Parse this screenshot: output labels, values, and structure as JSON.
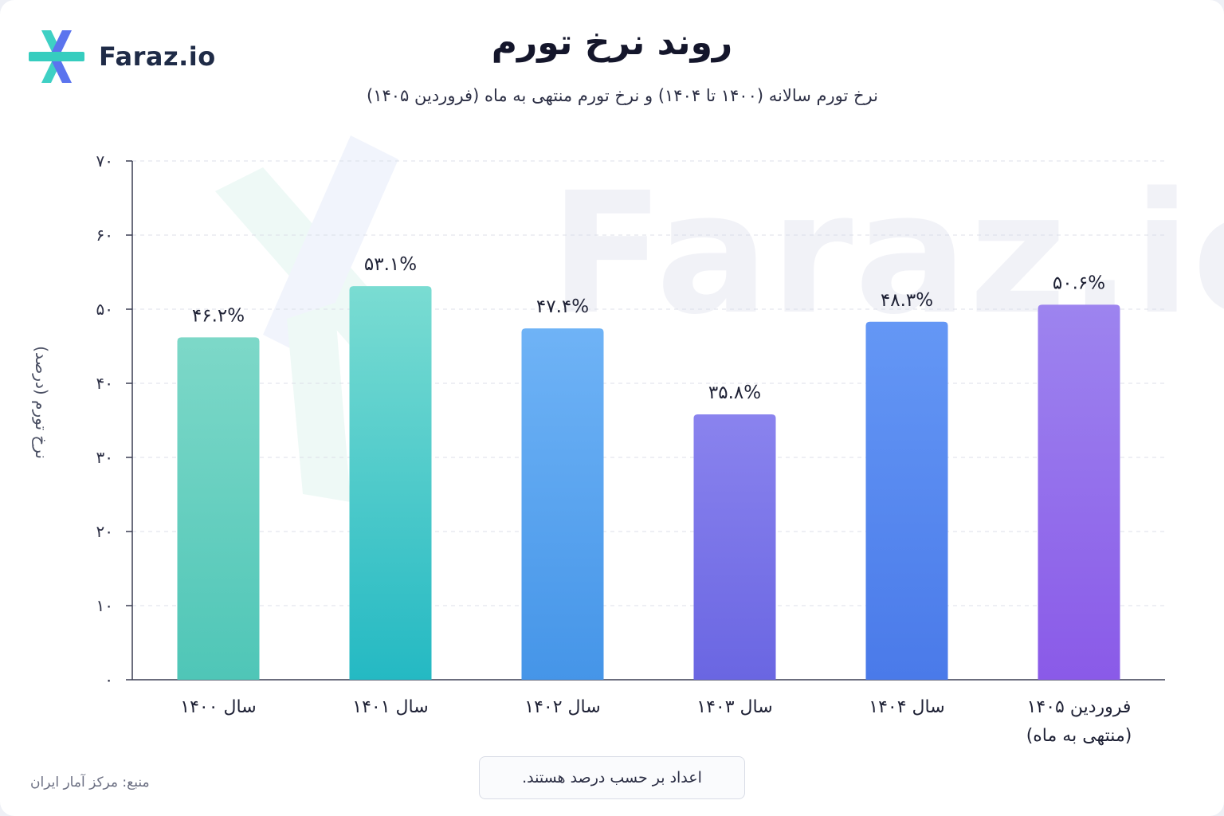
{
  "brand": {
    "logo_text": "Faraz.io",
    "watermark_text": "Faraz.io"
  },
  "note": "اعداد بر حسب درصد هستند.",
  "source": "منبع: مرکز آمار ایران",
  "chart_data": {
    "type": "bar",
    "title": "روند نرخ تورم",
    "subtitle": "نرخ تورم سالانه (۱۴۰۰ تا ۱۴۰۴) و نرخ تورم منتهی به ماه (فروردین ۱۴۰۵)",
    "xlabel": "",
    "ylabel": "نرخ تورم (درصد)",
    "ylim": [
      0,
      70
    ],
    "yticks": [
      0,
      10,
      20,
      30,
      40,
      50,
      60,
      70
    ],
    "ytick_labels": [
      "۰",
      "۱۰",
      "۲۰",
      "۳۰",
      "۴۰",
      "۵۰",
      "۶۰",
      "۷۰"
    ],
    "grid": true,
    "categories": [
      [
        "سال ۱۴۰۰"
      ],
      [
        "سال ۱۴۰۱"
      ],
      [
        "سال ۱۴۰۲"
      ],
      [
        "سال ۱۴۰۳"
      ],
      [
        "سال ۱۴۰۴"
      ],
      [
        "فروردین ۱۴۰۵",
        "(منتهی به ماه)"
      ]
    ],
    "values": [
      46.2,
      53.1,
      47.4,
      35.8,
      48.3,
      50.6
    ],
    "value_labels": [
      "۴۶.۲%",
      "۵۳.۱%",
      "۴۷.۴%",
      "۳۵.۸%",
      "۴۸.۳%",
      "۵۰.۶%"
    ],
    "colors": [
      [
        "#7dd8c8",
        "#4fc6b7"
      ],
      [
        "#7adcd2",
        "#24b9c3"
      ],
      [
        "#6fb3f6",
        "#4595e8"
      ],
      [
        "#8a83ee",
        "#6a66e2"
      ],
      [
        "#6497f5",
        "#4a7ae9"
      ],
      [
        "#9d84ef",
        "#8a5ae8"
      ]
    ]
  }
}
